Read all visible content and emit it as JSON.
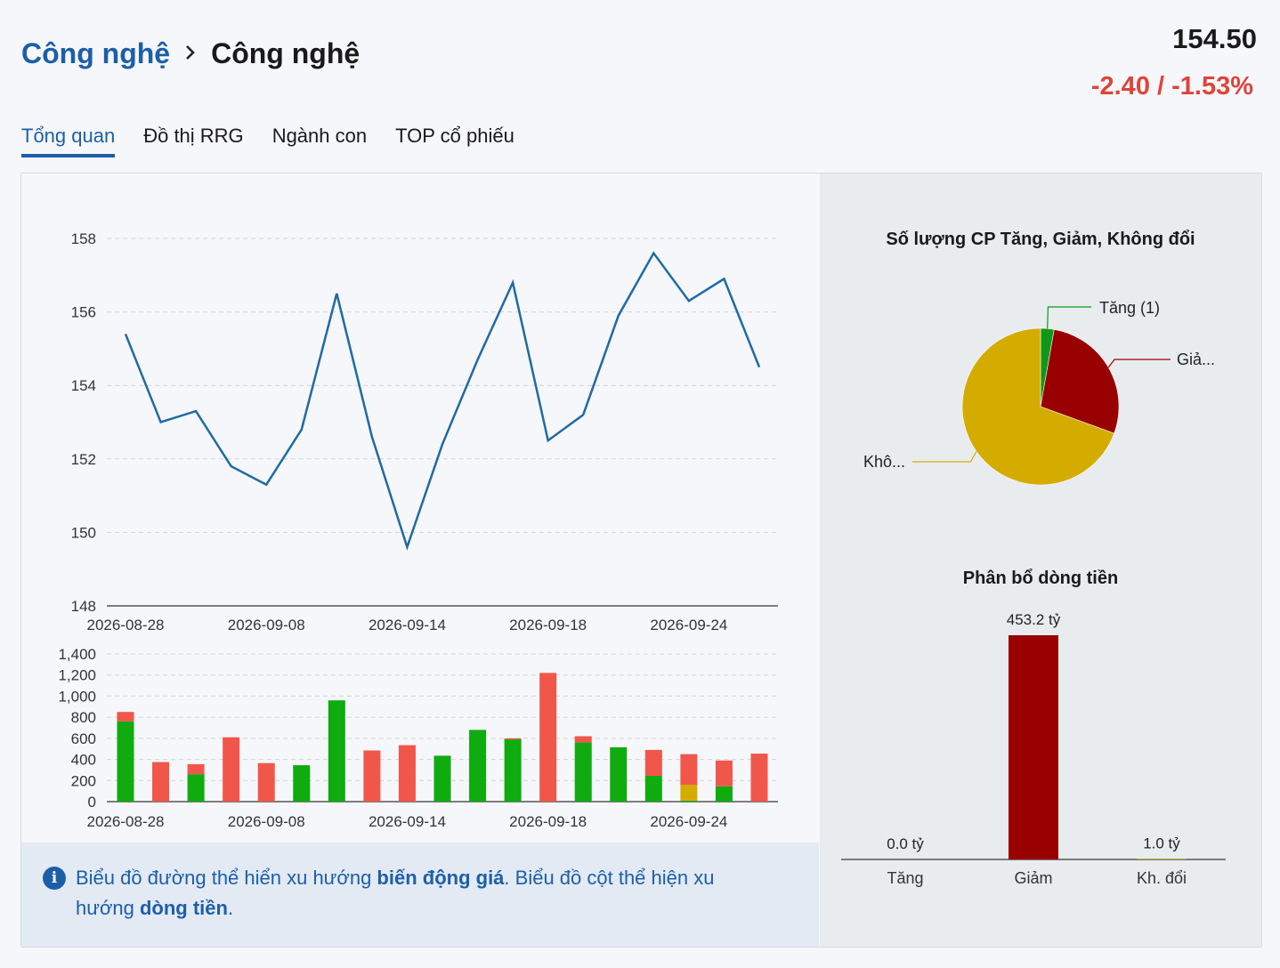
{
  "header": {
    "breadcrumb_parent": "Công nghệ",
    "breadcrumb_current": "Công nghệ",
    "price": "154.50",
    "change": "-2.40 / -1.53%",
    "change_color": "#e0433a"
  },
  "tabs": [
    {
      "label": "Tổng quan",
      "active": true
    },
    {
      "label": "Đồ thị RRG",
      "active": false
    },
    {
      "label": "Ngành con",
      "active": false
    },
    {
      "label": "TOP cổ phiếu",
      "active": false
    }
  ],
  "colors": {
    "accent": "#1c5fa8",
    "line": "#1f6aa5",
    "up": "#0fab0f",
    "down": "#f0574a",
    "unchanged": "#d4ac00",
    "flow_down": "#990000"
  },
  "chart_data": [
    {
      "type": "line",
      "title": "",
      "xlabel": "",
      "ylabel": "",
      "ylim": [
        148,
        158
      ],
      "yticks": [
        "148",
        "150",
        "152",
        "154",
        "156",
        "158"
      ],
      "grid": true,
      "x_tick_labels": [
        "2026-08-28",
        "2026-09-08",
        "2026-09-14",
        "2026-09-18",
        "2026-09-24"
      ],
      "x_tick_index": [
        0,
        4,
        8,
        12,
        16
      ],
      "values": [
        155.4,
        153.0,
        153.3,
        151.8,
        151.3,
        152.8,
        156.5,
        152.6,
        149.6,
        152.4,
        154.7,
        156.8,
        152.5,
        153.2,
        155.9,
        157.6,
        156.3,
        156.9,
        154.5
      ]
    },
    {
      "type": "bar",
      "stacked": true,
      "title": "",
      "ylim": [
        0,
        1400
      ],
      "yticks": [
        "0",
        "200",
        "400",
        "600",
        "800",
        "1,000",
        "1,200",
        "1,400"
      ],
      "grid": true,
      "x_tick_labels": [
        "2026-08-28",
        "2026-09-08",
        "2026-09-14",
        "2026-09-18",
        "2026-09-24"
      ],
      "x_tick_index": [
        0,
        4,
        8,
        12,
        16
      ],
      "series": [
        {
          "key": "up",
          "values": [
            760,
            0,
            260,
            0,
            0,
            345,
            960,
            0,
            0,
            435,
            680,
            590,
            0,
            560,
            515,
            245,
            10,
            145,
            0
          ]
        },
        {
          "key": "unchanged",
          "values": [
            0,
            0,
            0,
            0,
            0,
            0,
            0,
            0,
            0,
            0,
            0,
            0,
            0,
            0,
            0,
            0,
            150,
            0,
            0
          ]
        },
        {
          "key": "down",
          "values": [
            90,
            375,
            95,
            610,
            365,
            0,
            0,
            485,
            535,
            0,
            0,
            10,
            1220,
            60,
            0,
            245,
            290,
            245,
            455
          ]
        }
      ]
    },
    {
      "type": "pie",
      "title": "Số lượng CP Tăng, Giảm, Không đổi",
      "slices": [
        {
          "label": "Tăng (1)",
          "value": 1,
          "color": "#109618"
        },
        {
          "label": "Giả...",
          "value": 10,
          "color": "#990000"
        },
        {
          "label": "Khô...",
          "value": 25,
          "color": "#d4ac00"
        }
      ]
    },
    {
      "type": "bar",
      "title": "Phân bổ dòng tiền",
      "categories": [
        "Tăng",
        "Giảm",
        "Kh. đổi"
      ],
      "values": [
        0.0,
        453.2,
        1.0
      ],
      "data_labels": [
        "0.0 tỷ",
        "453.2 tỷ",
        "1.0 tỷ"
      ],
      "colors": [
        "#109618",
        "#990000",
        "#d4ac00"
      ]
    }
  ],
  "note": {
    "icon": "info-icon",
    "part1": "Biểu đồ đường thể hiển xu hướng ",
    "bold1": "biến động giá",
    "part2": ". Biểu đồ cột thể hiện xu hướng ",
    "bold2": "dòng tiền",
    "part3": "."
  }
}
